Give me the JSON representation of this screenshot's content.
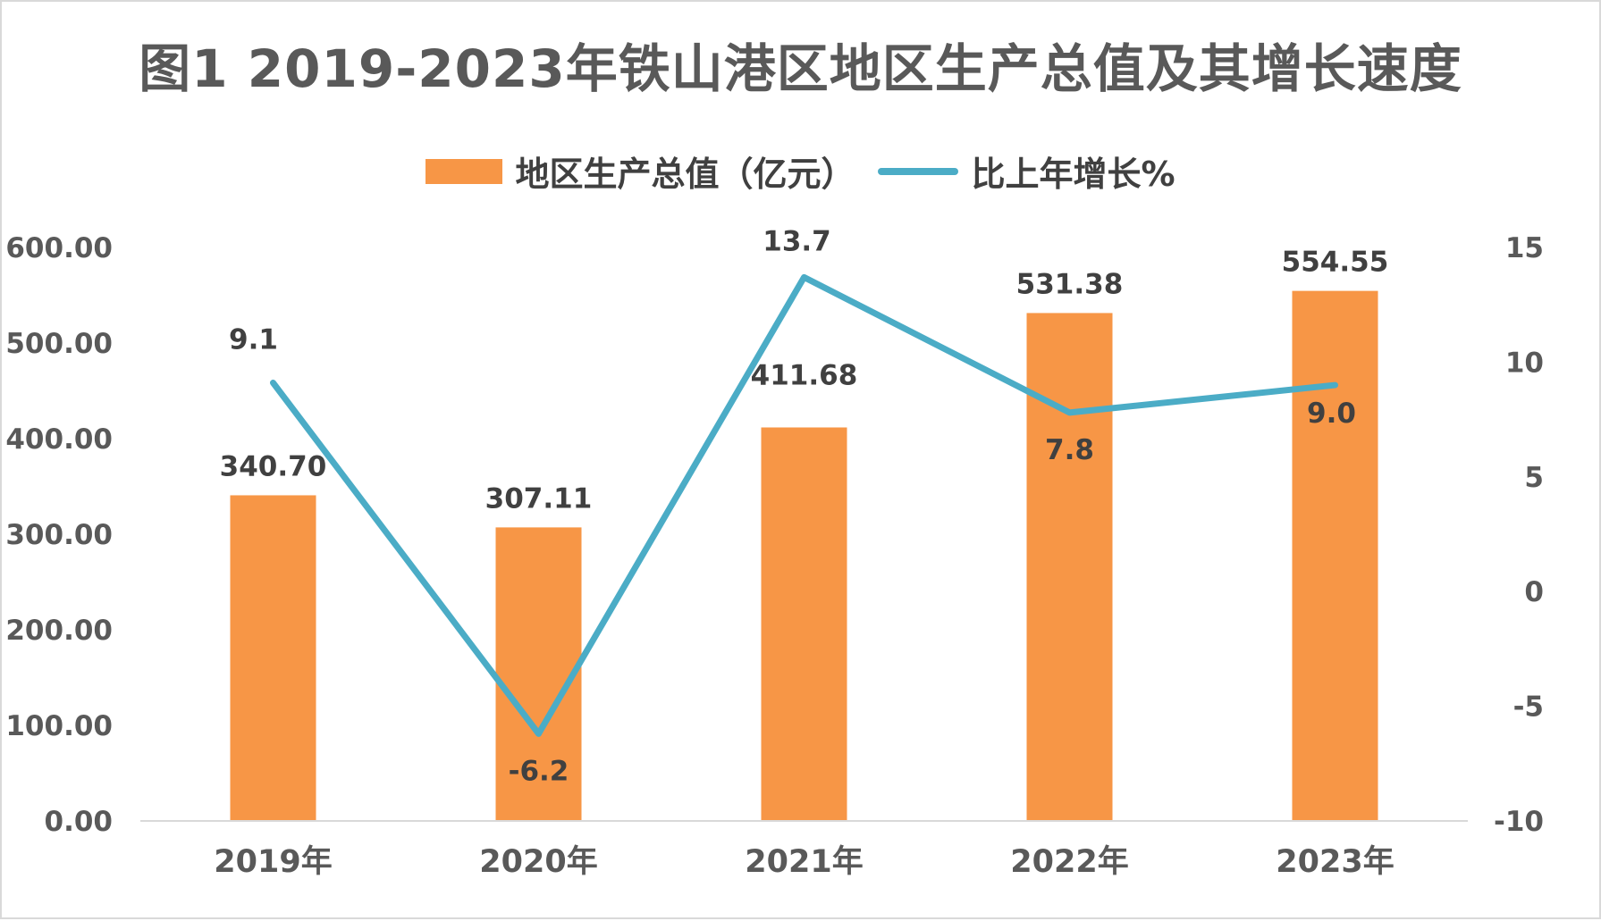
{
  "chart_data": {
    "type": "bar",
    "title": "图1 2019-2023年铁山港区地区生产总值及其增长速度",
    "categories": [
      "2019年",
      "2020年",
      "2021年",
      "2022年",
      "2023年"
    ],
    "series": [
      {
        "name": "地区生产总值（亿元）",
        "type": "bar",
        "axis": "left",
        "color": "#f79646",
        "values": [
          340.7,
          307.11,
          411.68,
          531.38,
          554.55
        ],
        "labels": [
          "340.70",
          "307.11",
          "411.68",
          "531.38",
          "554.55"
        ]
      },
      {
        "name": "比上年增长%",
        "type": "line",
        "axis": "right",
        "color": "#4bacc6",
        "values": [
          9.1,
          -6.2,
          13.7,
          7.8,
          9.0
        ],
        "labels": [
          "9.1",
          "-6.2",
          "13.7",
          "7.8",
          "9.0"
        ]
      }
    ],
    "y_left": {
      "min": 0,
      "max": 600,
      "ticks": [
        "600.00",
        "500.00",
        "400.00",
        "300.00",
        "200.00",
        "100.00",
        "0.00"
      ],
      "tick_values": [
        600,
        500,
        400,
        300,
        200,
        100,
        0
      ]
    },
    "y_right": {
      "min": -10,
      "max": 15,
      "ticks": [
        "15",
        "10",
        "5",
        "0",
        "-5",
        "-10"
      ],
      "tick_values": [
        15,
        10,
        5,
        0,
        -5,
        -10
      ]
    },
    "legend_position": "top",
    "grid": false
  }
}
